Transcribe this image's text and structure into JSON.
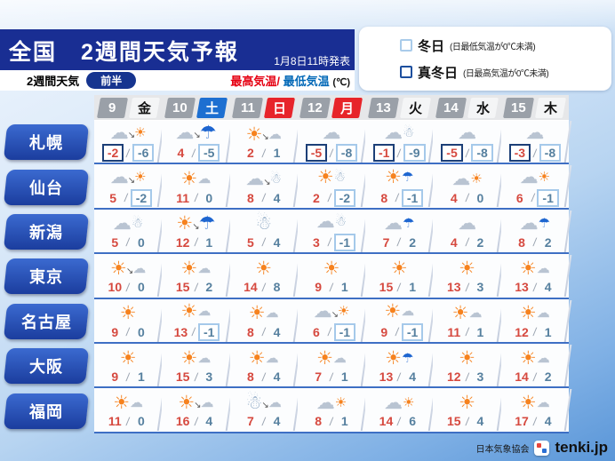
{
  "page": {
    "title": "全国　2週間天気予報",
    "issued": "1月8日11時発表",
    "tab_label": "2週間天気",
    "period_label": "前半",
    "high_label": "最高気温",
    "label_separator": "/",
    "low_label": "最低気温",
    "unit_label": "(℃)"
  },
  "legend": {
    "winter": {
      "label": "冬日",
      "desc": "(日最低気温が0℃未満)"
    },
    "midwinter": {
      "label": "真冬日",
      "desc": "(日最高気温が0℃未満)"
    }
  },
  "days": [
    {
      "date": "9",
      "weekday": "金",
      "type": "normal"
    },
    {
      "date": "10",
      "weekday": "土",
      "type": "sat"
    },
    {
      "date": "11",
      "weekday": "日",
      "type": "sun"
    },
    {
      "date": "12",
      "weekday": "月",
      "type": "sun"
    },
    {
      "date": "13",
      "weekday": "火",
      "type": "normal"
    },
    {
      "date": "14",
      "weekday": "水",
      "type": "normal"
    },
    {
      "date": "15",
      "weekday": "木",
      "type": "normal"
    }
  ],
  "forecast": {
    "temp_separator": "/",
    "rows": [
      {
        "city": "札幌",
        "cells": [
          {
            "icon": "cloud-then-sun",
            "high": "-2",
            "low": "-6",
            "high_box": "midwinter",
            "low_box": "winter"
          },
          {
            "icon": "cloud-then-rain",
            "high": "4",
            "low": "-5",
            "high_box": null,
            "low_box": "winter"
          },
          {
            "icon": "sun-then-cloud",
            "high": "2",
            "low": "1",
            "high_box": null,
            "low_box": null
          },
          {
            "icon": "cloud",
            "high": "-5",
            "low": "-8",
            "high_box": "midwinter",
            "low_box": "winter"
          },
          {
            "icon": "cloud-snow",
            "high": "-1",
            "low": "-9",
            "high_box": "midwinter",
            "low_box": "winter"
          },
          {
            "icon": "cloud",
            "high": "-5",
            "low": "-8",
            "high_box": "midwinter",
            "low_box": "winter"
          },
          {
            "icon": "cloud",
            "high": "-3",
            "low": "-8",
            "high_box": "midwinter",
            "low_box": "winter"
          }
        ]
      },
      {
        "city": "仙台",
        "cells": [
          {
            "icon": "cloud-then-sun",
            "high": "5",
            "low": "-2",
            "high_box": null,
            "low_box": "winter"
          },
          {
            "icon": "sun-cloud",
            "high": "11",
            "low": "0",
            "high_box": null,
            "low_box": null
          },
          {
            "icon": "cloud-then-snow",
            "high": "8",
            "low": "4",
            "high_box": null,
            "low_box": null
          },
          {
            "icon": "sun-snow",
            "high": "2",
            "low": "-2",
            "high_box": null,
            "low_box": "winter"
          },
          {
            "icon": "sun-rain",
            "high": "8",
            "low": "-1",
            "high_box": null,
            "low_box": "winter"
          },
          {
            "icon": "cloud-sun",
            "high": "4",
            "low": "0",
            "high_box": null,
            "low_box": null
          },
          {
            "icon": "cloud-sun",
            "high": "6",
            "low": "-1",
            "high_box": null,
            "low_box": "winter"
          }
        ]
      },
      {
        "city": "新潟",
        "cells": [
          {
            "icon": "cloud-snow",
            "high": "5",
            "low": "0",
            "high_box": null,
            "low_box": null
          },
          {
            "icon": "sun-then-rain",
            "high": "12",
            "low": "1",
            "high_box": null,
            "low_box": null
          },
          {
            "icon": "snow",
            "high": "5",
            "low": "4",
            "high_box": null,
            "low_box": null
          },
          {
            "icon": "cloud-snow",
            "high": "3",
            "low": "-1",
            "high_box": null,
            "low_box": "winter"
          },
          {
            "icon": "cloud-rain",
            "high": "7",
            "low": "2",
            "high_box": null,
            "low_box": null
          },
          {
            "icon": "cloud",
            "high": "4",
            "low": "2",
            "high_box": null,
            "low_box": null
          },
          {
            "icon": "cloud-rain",
            "high": "8",
            "low": "2",
            "high_box": null,
            "low_box": null
          }
        ]
      },
      {
        "city": "東京",
        "cells": [
          {
            "icon": "sun-then-cloud",
            "high": "10",
            "low": "0",
            "high_box": null,
            "low_box": null
          },
          {
            "icon": "sun-cloud",
            "high": "15",
            "low": "2",
            "high_box": null,
            "low_box": null
          },
          {
            "icon": "sun",
            "high": "14",
            "low": "8",
            "high_box": null,
            "low_box": null
          },
          {
            "icon": "sun",
            "high": "9",
            "low": "1",
            "high_box": null,
            "low_box": null
          },
          {
            "icon": "sun",
            "high": "15",
            "low": "1",
            "high_box": null,
            "low_box": null
          },
          {
            "icon": "sun",
            "high": "13",
            "low": "3",
            "high_box": null,
            "low_box": null
          },
          {
            "icon": "sun-cloud",
            "high": "13",
            "low": "4",
            "high_box": null,
            "low_box": null
          }
        ]
      },
      {
        "city": "名古屋",
        "cells": [
          {
            "icon": "sun",
            "high": "9",
            "low": "0",
            "high_box": null,
            "low_box": null
          },
          {
            "icon": "sun-cloud",
            "high": "13",
            "low": "-1",
            "high_box": null,
            "low_box": "winter"
          },
          {
            "icon": "sun-cloud",
            "high": "8",
            "low": "4",
            "high_box": null,
            "low_box": null
          },
          {
            "icon": "cloud-then-sun",
            "high": "6",
            "low": "-1",
            "high_box": null,
            "low_box": "winter"
          },
          {
            "icon": "sun-cloud",
            "high": "9",
            "low": "-1",
            "high_box": null,
            "low_box": "winter"
          },
          {
            "icon": "sun-cloud",
            "high": "11",
            "low": "1",
            "high_box": null,
            "low_box": null
          },
          {
            "icon": "sun-cloud",
            "high": "12",
            "low": "1",
            "high_box": null,
            "low_box": null
          }
        ]
      },
      {
        "city": "大阪",
        "cells": [
          {
            "icon": "sun",
            "high": "9",
            "low": "1",
            "high_box": null,
            "low_box": null
          },
          {
            "icon": "sun-cloud",
            "high": "15",
            "low": "3",
            "high_box": null,
            "low_box": null
          },
          {
            "icon": "sun-cloud",
            "high": "8",
            "low": "4",
            "high_box": null,
            "low_box": null
          },
          {
            "icon": "sun-cloud",
            "high": "7",
            "low": "1",
            "high_box": null,
            "low_box": null
          },
          {
            "icon": "sun-rain",
            "high": "13",
            "low": "4",
            "high_box": null,
            "low_box": null
          },
          {
            "icon": "sun",
            "high": "12",
            "low": "3",
            "high_box": null,
            "low_box": null
          },
          {
            "icon": "sun-cloud",
            "high": "14",
            "low": "2",
            "high_box": null,
            "low_box": null
          }
        ]
      },
      {
        "city": "福岡",
        "cells": [
          {
            "icon": "sun-cloud",
            "high": "11",
            "low": "0",
            "high_box": null,
            "low_box": null
          },
          {
            "icon": "sun-then-cloud",
            "high": "16",
            "low": "4",
            "high_box": null,
            "low_box": null
          },
          {
            "icon": "snow-then-cloud",
            "high": "7",
            "low": "4",
            "high_box": null,
            "low_box": null
          },
          {
            "icon": "cloud-sun",
            "high": "8",
            "low": "1",
            "high_box": null,
            "low_box": null
          },
          {
            "icon": "cloud-sun",
            "high": "14",
            "low": "6",
            "high_box": null,
            "low_box": null
          },
          {
            "icon": "sun",
            "high": "15",
            "low": "4",
            "high_box": null,
            "low_box": null
          },
          {
            "icon": "sun-cloud",
            "high": "17",
            "low": "4",
            "high_box": null,
            "low_box": null
          }
        ]
      }
    ]
  },
  "icons": {
    "glyphs": {
      "sun": "☀",
      "cloud": "☁",
      "umbrella": "☂",
      "snowman": "☃",
      "arrow": "↘"
    },
    "compositions": {
      "sun": [
        "sun"
      ],
      "cloud": [
        "cloud"
      ],
      "snow": [
        "snowman"
      ],
      "sun-cloud": [
        "sun",
        "cloud:sm"
      ],
      "cloud-sun": [
        "cloud",
        "sun:sm"
      ],
      "sun-then-cloud": [
        "sun",
        "arrow",
        "cloud:sm"
      ],
      "cloud-then-sun": [
        "cloud",
        "arrow",
        "sun:sm"
      ],
      "cloud-then-rain": [
        "cloud",
        "arrow",
        "umbrella"
      ],
      "sun-then-rain": [
        "sun",
        "arrow",
        "umbrella"
      ],
      "cloud-rain": [
        "cloud",
        "umbrella:sm"
      ],
      "sun-rain": [
        "sun",
        "umbrella:sm"
      ],
      "cloud-snow": [
        "cloud",
        "snowman:sm"
      ],
      "sun-snow": [
        "sun",
        "snowman:sm"
      ],
      "cloud-then-snow": [
        "cloud",
        "arrow",
        "snowman:sm"
      ],
      "snow-then-cloud": [
        "snowman",
        "arrow",
        "cloud:sm"
      ]
    }
  },
  "footer": {
    "agency": "日本気象協会",
    "brand": "tenki.jp"
  },
  "colors": {
    "banner_blue": "#192e93",
    "holiday_red": "#e7242a",
    "saturday_blue": "#1d6fd1",
    "high_temp_red": "#d6493f",
    "low_temp_blue": "#56809f",
    "winter_box_border": "#a5c9ea",
    "midwinter_box_border": "#1c3f77",
    "high_label_red": "#e60012",
    "low_label_blue": "#0068b7"
  }
}
